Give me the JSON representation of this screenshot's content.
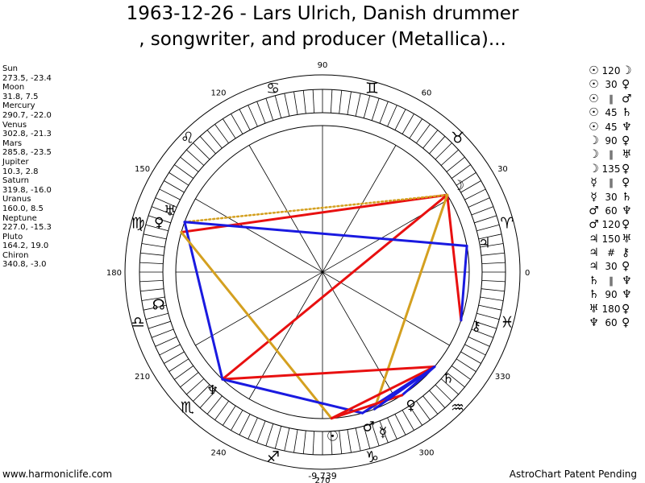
{
  "header": {
    "title_line1": "1963-12-26 - Lars Ulrich, Danish drummer",
    "title_line2": ", songwriter, and producer (Metallica)..."
  },
  "planets": [
    {
      "name": "Sun",
      "coords": "273.5, -23.4"
    },
    {
      "name": "Moon",
      "coords": "31.8, 7.5"
    },
    {
      "name": "Mercury",
      "coords": "290.7, -22.0"
    },
    {
      "name": "Venus",
      "coords": "302.8, -21.3"
    },
    {
      "name": "Mars",
      "coords": "285.8, -23.5"
    },
    {
      "name": "Jupiter",
      "coords": "10.3, 2.8"
    },
    {
      "name": "Saturn",
      "coords": "319.8, -16.0"
    },
    {
      "name": "Uranus",
      "coords": "160.0, 8.5"
    },
    {
      "name": "Neptune",
      "coords": "227.0, -15.3"
    },
    {
      "name": "Pluto",
      "coords": "164.2, 19.0"
    },
    {
      "name": "Chiron",
      "coords": "340.8, -3.0"
    }
  ],
  "aspects": [
    {
      "p1": "☉",
      "angle": "120",
      "p2": "☽"
    },
    {
      "p1": "☉",
      "angle": "30",
      "p2": "♀"
    },
    {
      "p1": "☉",
      "angle": "∥",
      "p2": "♂"
    },
    {
      "p1": "☉",
      "angle": "45",
      "p2": "♄"
    },
    {
      "p1": "☉",
      "angle": "45",
      "p2": "♆"
    },
    {
      "p1": "☽",
      "angle": "90",
      "p2": "♀"
    },
    {
      "p1": "☽",
      "angle": "∥",
      "p2": "♅"
    },
    {
      "p1": "☽",
      "angle": "135",
      "p2": "♀"
    },
    {
      "p1": "☿",
      "angle": "∥",
      "p2": "♀"
    },
    {
      "p1": "☿",
      "angle": "30",
      "p2": "♄"
    },
    {
      "p1": "♂",
      "angle": "60",
      "p2": "♆"
    },
    {
      "p1": "♂",
      "angle": "120",
      "p2": "♀"
    },
    {
      "p1": "♃",
      "angle": "150",
      "p2": "♅"
    },
    {
      "p1": "♃",
      "angle": "#",
      "p2": "⚷"
    },
    {
      "p1": "♃",
      "angle": "30",
      "p2": "♀"
    },
    {
      "p1": "♄",
      "angle": "∥",
      "p2": "♆"
    },
    {
      "p1": "♄",
      "angle": "90",
      "p2": "♆"
    },
    {
      "p1": "♅",
      "angle": "180",
      "p2": "♀"
    },
    {
      "p1": "♆",
      "angle": "60",
      "p2": "♀"
    }
  ],
  "wheel": {
    "degree_labels": [
      "90",
      "60",
      "30",
      "0",
      "330",
      "300",
      "270",
      "240",
      "210",
      "180",
      "150",
      "120"
    ],
    "signs": [
      {
        "symbol": "♈",
        "lon": 15,
        "name": "aries"
      },
      {
        "symbol": "♉",
        "lon": 45,
        "name": "taurus"
      },
      {
        "symbol": "♊",
        "lon": 75,
        "name": "gemini"
      },
      {
        "symbol": "♋",
        "lon": 105,
        "name": "cancer"
      },
      {
        "symbol": "♌",
        "lon": 135,
        "name": "leo"
      },
      {
        "symbol": "♍",
        "lon": 165,
        "name": "virgo"
      },
      {
        "symbol": "♎",
        "lon": 195,
        "name": "libra"
      },
      {
        "symbol": "♏",
        "lon": 225,
        "name": "scorpio"
      },
      {
        "symbol": "♐",
        "lon": 255,
        "name": "sagittarius"
      },
      {
        "symbol": "♑",
        "lon": 285,
        "name": "capricorn"
      },
      {
        "symbol": "♒",
        "lon": 315,
        "name": "aquarius"
      },
      {
        "symbol": "♓",
        "lon": 345,
        "name": "pisces"
      }
    ],
    "node_symbol": "☊",
    "node_lon": 191,
    "bottom_label": "-9,739"
  },
  "colors": {
    "red": "#e81010",
    "blue": "#1a1ae0",
    "gold": "#d4a020"
  },
  "footer": {
    "left": "www.harmoniclife.com",
    "right": "AstroChart Patent Pending"
  }
}
